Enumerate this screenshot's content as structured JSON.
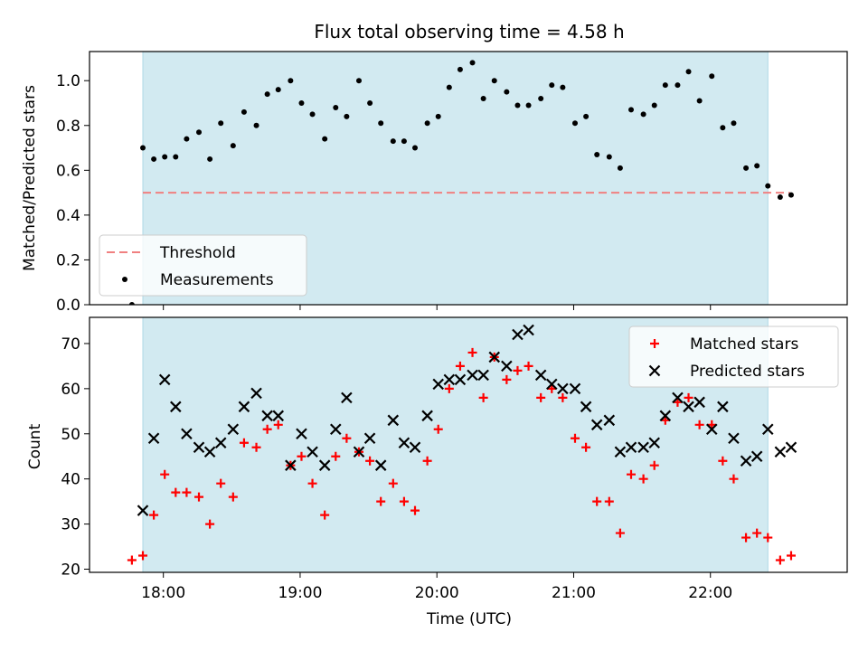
{
  "chart_data": {
    "type": "scatter",
    "title": "Flux total observing time = 4.58 h",
    "xlabel": "Time (UTC)",
    "x_ticks": [
      "18:00",
      "19:00",
      "20:00",
      "21:00",
      "22:00"
    ],
    "x_range_hours": [
      17.46,
      23.0
    ],
    "shaded_span_hours": [
      17.85,
      22.42
    ],
    "shade_color": "#add8e6",
    "panels": [
      {
        "ylabel": "Matched/Predicted stars",
        "ylim": [
          0.0,
          1.13
        ],
        "y_ticks": [
          "0.0",
          "0.2",
          "0.4",
          "0.6",
          "0.8",
          "1.0"
        ],
        "legend": {
          "position": "lower-left",
          "entries": [
            "Threshold",
            "Measurements"
          ]
        },
        "threshold": {
          "name": "Threshold",
          "value": 0.5,
          "color": "#f08080"
        },
        "series": [
          {
            "name": "Measurements",
            "marker": "dot",
            "color": "#000000",
            "x": [
              17.77,
              17.85,
              17.93,
              18.01,
              18.09,
              18.17,
              18.26,
              18.34,
              18.42,
              18.51,
              18.59,
              18.68,
              18.76,
              18.84,
              18.93,
              19.01,
              19.09,
              19.18,
              19.26,
              19.34,
              19.43,
              19.51,
              19.59,
              19.68,
              19.76,
              19.84,
              19.93,
              20.01,
              20.09,
              20.17,
              20.26,
              20.34,
              20.42,
              20.51,
              20.59,
              20.67,
              20.76,
              20.84,
              20.92,
              21.01,
              21.09,
              21.17,
              21.26,
              21.34,
              21.42,
              21.51,
              21.59,
              21.67,
              21.76,
              21.84,
              21.92,
              22.01,
              22.09,
              22.17,
              22.26,
              22.34,
              22.42,
              22.51,
              22.59
            ],
            "y": [
              0.0,
              0.7,
              0.65,
              0.66,
              0.66,
              0.74,
              0.77,
              0.65,
              0.81,
              0.71,
              0.86,
              0.8,
              0.94,
              0.96,
              1.0,
              0.9,
              0.85,
              0.74,
              0.88,
              0.84,
              1.0,
              0.9,
              0.81,
              0.73,
              0.73,
              0.7,
              0.81,
              0.84,
              0.97,
              1.05,
              1.08,
              0.92,
              1.0,
              0.95,
              0.89,
              0.89,
              0.92,
              0.98,
              0.97,
              0.81,
              0.84,
              0.67,
              0.66,
              0.61,
              0.87,
              0.85,
              0.89,
              0.98,
              0.98,
              1.04,
              0.91,
              1.02,
              0.79,
              0.81,
              0.61,
              0.62,
              0.53,
              0.48,
              0.49
            ]
          }
        ]
      },
      {
        "ylabel": "Count",
        "ylim": [
          19.3,
          75.8
        ],
        "y_ticks": [
          "20",
          "30",
          "40",
          "50",
          "60",
          "70"
        ],
        "legend": {
          "position": "upper-right",
          "entries": [
            "Matched stars",
            "Predicted stars"
          ]
        },
        "series": [
          {
            "name": "Matched stars",
            "marker": "plus",
            "color": "#ff0000",
            "x": [
              17.77,
              17.85,
              17.93,
              18.01,
              18.09,
              18.17,
              18.26,
              18.34,
              18.42,
              18.51,
              18.59,
              18.68,
              18.76,
              18.84,
              18.93,
              19.01,
              19.09,
              19.18,
              19.26,
              19.34,
              19.43,
              19.51,
              19.59,
              19.68,
              19.76,
              19.84,
              19.93,
              20.01,
              20.09,
              20.17,
              20.26,
              20.34,
              20.42,
              20.51,
              20.59,
              20.67,
              20.76,
              20.84,
              20.92,
              21.01,
              21.09,
              21.17,
              21.26,
              21.34,
              21.42,
              21.51,
              21.59,
              21.67,
              21.76,
              21.84,
              21.92,
              22.01,
              22.09,
              22.17,
              22.26,
              22.34,
              22.42,
              22.51,
              22.59
            ],
            "y": [
              22,
              23,
              32,
              41,
              37,
              37,
              36,
              30,
              39,
              36,
              48,
              47,
              51,
              52,
              43,
              45,
              39,
              32,
              45,
              49,
              46,
              44,
              35,
              39,
              35,
              33,
              44,
              51,
              60,
              65,
              68,
              58,
              67,
              62,
              64,
              65,
              58,
              60,
              58,
              49,
              47,
              35,
              35,
              28,
              41,
              40,
              43,
              53,
              57,
              58,
              52,
              52,
              44,
              40,
              27,
              28,
              27,
              22,
              23
            ]
          },
          {
            "name": "Predicted stars",
            "marker": "x",
            "color": "#000000",
            "x": [
              17.85,
              17.93,
              18.01,
              18.09,
              18.17,
              18.26,
              18.34,
              18.42,
              18.51,
              18.59,
              18.68,
              18.76,
              18.84,
              18.93,
              19.01,
              19.09,
              19.18,
              19.26,
              19.34,
              19.43,
              19.51,
              19.59,
              19.68,
              19.76,
              19.84,
              19.93,
              20.01,
              20.09,
              20.17,
              20.26,
              20.34,
              20.42,
              20.51,
              20.59,
              20.67,
              20.76,
              20.84,
              20.92,
              21.01,
              21.09,
              21.17,
              21.26,
              21.34,
              21.42,
              21.51,
              21.59,
              21.67,
              21.76,
              21.84,
              21.92,
              22.01,
              22.09,
              22.17,
              22.26,
              22.34,
              22.42,
              22.51,
              22.59
            ],
            "y": [
              33,
              49,
              62,
              56,
              50,
              47,
              46,
              48,
              51,
              56,
              59,
              54,
              54,
              43,
              50,
              46,
              43,
              51,
              58,
              46,
              49,
              43,
              53,
              48,
              47,
              54,
              61,
              62,
              62,
              63,
              63,
              67,
              65,
              72,
              73,
              63,
              61,
              60,
              60,
              56,
              52,
              53,
              46,
              47,
              47,
              48,
              54,
              58,
              56,
              57,
              51,
              56,
              49,
              44,
              45,
              51,
              46,
              47
            ]
          }
        ]
      }
    ]
  }
}
